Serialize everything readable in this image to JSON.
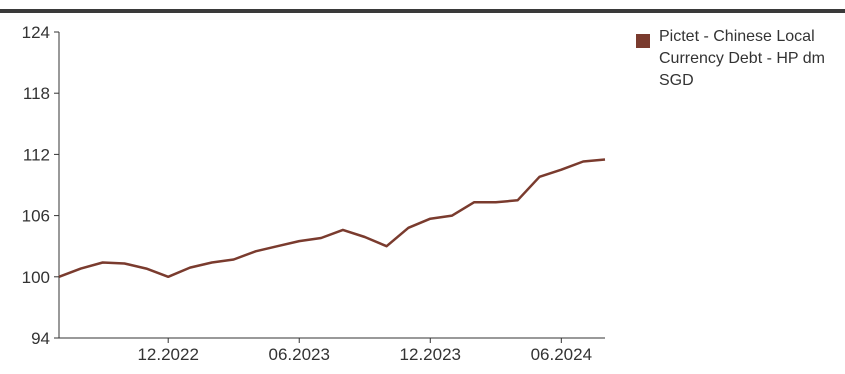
{
  "chart_data": {
    "type": "line",
    "title": "",
    "xlabel": "",
    "ylabel": "",
    "ylim": [
      94,
      124
    ],
    "yticks": [
      94,
      100,
      106,
      112,
      118,
      124
    ],
    "xticks": [
      "12.2022",
      "06.2023",
      "12.2023",
      "06.2024"
    ],
    "x_range": [
      "2022-07",
      "2024-08"
    ],
    "grid": false,
    "legend_position": "top-right",
    "series": [
      {
        "name": "Pictet - Chinese Local Currency Debt - HP dm SGD",
        "color": "#7a3b2e",
        "points": [
          [
            "2022-07",
            100.0
          ],
          [
            "2022-08",
            100.8
          ],
          [
            "2022-09",
            101.4
          ],
          [
            "2022-10",
            101.3
          ],
          [
            "2022-11",
            100.8
          ],
          [
            "2022-12",
            100.0
          ],
          [
            "2023-01",
            100.9
          ],
          [
            "2023-02",
            101.4
          ],
          [
            "2023-03",
            101.7
          ],
          [
            "2023-04",
            102.5
          ],
          [
            "2023-05",
            103.0
          ],
          [
            "2023-06",
            103.5
          ],
          [
            "2023-07",
            103.8
          ],
          [
            "2023-08",
            104.6
          ],
          [
            "2023-09",
            103.9
          ],
          [
            "2023-10",
            103.0
          ],
          [
            "2023-11",
            104.8
          ],
          [
            "2023-12",
            105.7
          ],
          [
            "2024-01",
            106.0
          ],
          [
            "2024-02",
            107.3
          ],
          [
            "2024-03",
            107.3
          ],
          [
            "2024-04",
            107.5
          ],
          [
            "2024-05",
            109.8
          ],
          [
            "2024-06",
            110.5
          ],
          [
            "2024-07",
            111.3
          ],
          [
            "2024-08",
            111.5
          ]
        ]
      }
    ]
  }
}
